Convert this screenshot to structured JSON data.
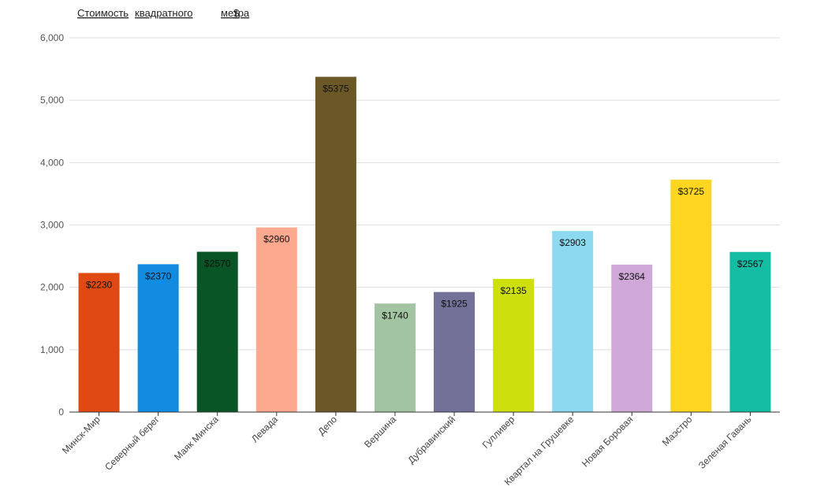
{
  "chart_data": {
    "type": "bar",
    "title": "Стоимость квадратного метра $",
    "title_words": [
      "Стоимость",
      "квадратного",
      "метра",
      "$"
    ],
    "xlabel": "",
    "ylabel": "",
    "ylim": [
      0,
      6000
    ],
    "yticks": [
      0,
      1000,
      2000,
      3000,
      4000,
      5000,
      6000
    ],
    "ytick_labels": [
      "0",
      "1,000",
      "2,000",
      "3,000",
      "4,000",
      "5,000",
      "6,000"
    ],
    "grid": true,
    "categories": [
      "Минск-Мир",
      "Северный берег",
      "Маяк Минска",
      "Левада",
      "Депо",
      "Вершина",
      "Дубравинский",
      "Гулливер",
      "Квартал на Грушевке",
      "Новая Боровая",
      "Маэстро",
      "Зеленая Гавань"
    ],
    "values": [
      2230,
      2370,
      2570,
      2960,
      5375,
      1740,
      1925,
      2135,
      2903,
      2364,
      3725,
      2567
    ],
    "data_labels": [
      "$2230",
      "$2370",
      "$2570",
      "$2960",
      "$5375",
      "$1740",
      "$1925",
      "$2135",
      "$2903",
      "$2364",
      "$3725",
      "$2567"
    ],
    "colors": [
      "#e04a12",
      "#118ce0",
      "#0a5525",
      "#fda98f",
      "#6b5826",
      "#a3c4a3",
      "#737198",
      "#cde00d",
      "#8dd9f0",
      "#cfa8d8",
      "#fed51f",
      "#13bda3"
    ],
    "label_colors": [
      "#111111",
      "#111111",
      "#ffffff",
      "#111111",
      "#ffffff",
      "#111111",
      "#111111",
      "#111111",
      "#111111",
      "#111111",
      "#111111",
      "#111111"
    ]
  }
}
